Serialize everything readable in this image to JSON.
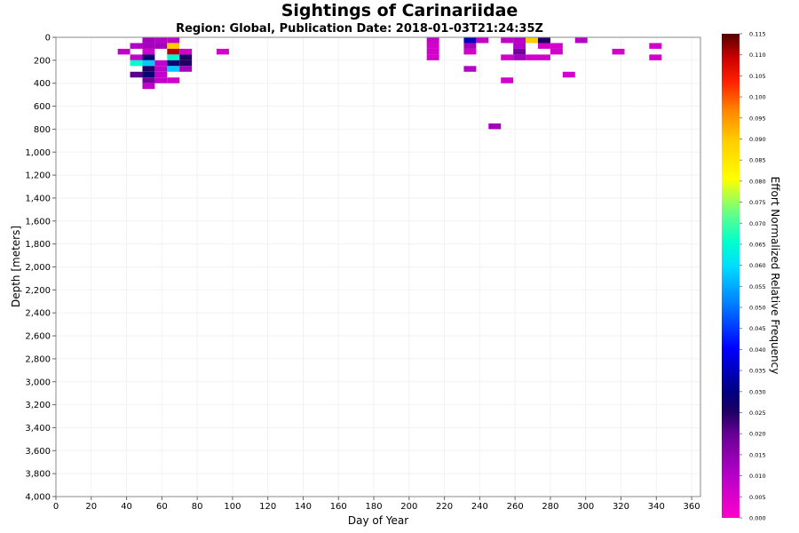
{
  "chart_data": {
    "type": "heatmap",
    "title": "Sightings of Carinariidae",
    "subtitle": "Region: Global, Publication Date: 2018-01-03T21:24:35Z",
    "xlabel": "Day of Year",
    "ylabel": "Depth [meters]",
    "colorbar_label": "Effort Normalized Relative Frequency",
    "xlim": [
      0,
      365
    ],
    "ylim": [
      0,
      4000
    ],
    "y_inverted": true,
    "x_ticks": [
      "0",
      "20",
      "40",
      "60",
      "80",
      "100",
      "120",
      "140",
      "160",
      "180",
      "200",
      "220",
      "240",
      "260",
      "280",
      "300",
      "320",
      "340",
      "360"
    ],
    "y_ticks": [
      "0",
      "200",
      "400",
      "600",
      "800",
      "1,000",
      "1,200",
      "1,400",
      "1,600",
      "1,800",
      "2,000",
      "2,200",
      "2,400",
      "2,600",
      "2,800",
      "3,000",
      "3,200",
      "3,400",
      "3,600",
      "3,800",
      "4,000"
    ],
    "colorbar_range": [
      0,
      0.115
    ],
    "colorbar_ticks": [
      "0.000",
      "0.005",
      "0.010",
      "0.015",
      "0.020",
      "0.025",
      "0.030",
      "0.035",
      "0.040",
      "0.045",
      "0.050",
      "0.055",
      "0.060",
      "0.065",
      "0.070",
      "0.075",
      "0.080",
      "0.085",
      "0.090",
      "0.095",
      "0.100",
      "0.105",
      "0.110",
      "0.115"
    ],
    "bin_size": {
      "day": 7,
      "depth": 50
    },
    "cells": [
      {
        "day": 49,
        "depth": 0,
        "value": 0.012
      },
      {
        "day": 56,
        "depth": 0,
        "value": 0.01
      },
      {
        "day": 63,
        "depth": 0,
        "value": 0.008
      },
      {
        "day": 210,
        "depth": 0,
        "value": 0.008
      },
      {
        "day": 231,
        "depth": 0,
        "value": 0.035
      },
      {
        "day": 238,
        "depth": 0,
        "value": 0.008
      },
      {
        "day": 252,
        "depth": 0,
        "value": 0.008
      },
      {
        "day": 259,
        "depth": 0,
        "value": 0.01
      },
      {
        "day": 266,
        "depth": 0,
        "value": 0.09
      },
      {
        "day": 273,
        "depth": 0,
        "value": 0.025
      },
      {
        "day": 294,
        "depth": 0,
        "value": 0.01
      },
      {
        "day": 42,
        "depth": 50,
        "value": 0.01
      },
      {
        "day": 49,
        "depth": 50,
        "value": 0.012
      },
      {
        "day": 56,
        "depth": 50,
        "value": 0.012
      },
      {
        "day": 63,
        "depth": 50,
        "value": 0.09
      },
      {
        "day": 210,
        "depth": 50,
        "value": 0.006
      },
      {
        "day": 231,
        "depth": 50,
        "value": 0.012
      },
      {
        "day": 259,
        "depth": 50,
        "value": 0.01
      },
      {
        "day": 273,
        "depth": 50,
        "value": 0.006
      },
      {
        "day": 280,
        "depth": 50,
        "value": 0.006
      },
      {
        "day": 336,
        "depth": 50,
        "value": 0.006
      },
      {
        "day": 35,
        "depth": 100,
        "value": 0.008
      },
      {
        "day": 49,
        "depth": 100,
        "value": 0.006
      },
      {
        "day": 63,
        "depth": 100,
        "value": 0.11
      },
      {
        "day": 70,
        "depth": 100,
        "value": 0.006
      },
      {
        "day": 91,
        "depth": 100,
        "value": 0.006
      },
      {
        "day": 210,
        "depth": 100,
        "value": 0.006
      },
      {
        "day": 231,
        "depth": 100,
        "value": 0.006
      },
      {
        "day": 259,
        "depth": 100,
        "value": 0.018
      },
      {
        "day": 280,
        "depth": 100,
        "value": 0.006
      },
      {
        "day": 315,
        "depth": 100,
        "value": 0.006
      },
      {
        "day": 42,
        "depth": 150,
        "value": 0.008
      },
      {
        "day": 49,
        "depth": 150,
        "value": 0.028
      },
      {
        "day": 63,
        "depth": 150,
        "value": 0.065
      },
      {
        "day": 70,
        "depth": 150,
        "value": 0.025
      },
      {
        "day": 210,
        "depth": 150,
        "value": 0.006
      },
      {
        "day": 252,
        "depth": 150,
        "value": 0.006
      },
      {
        "day": 259,
        "depth": 150,
        "value": 0.012
      },
      {
        "day": 266,
        "depth": 150,
        "value": 0.006
      },
      {
        "day": 273,
        "depth": 150,
        "value": 0.006
      },
      {
        "day": 336,
        "depth": 150,
        "value": 0.006
      },
      {
        "day": 42,
        "depth": 200,
        "value": 0.066
      },
      {
        "day": 49,
        "depth": 200,
        "value": 0.058
      },
      {
        "day": 56,
        "depth": 200,
        "value": 0.008
      },
      {
        "day": 63,
        "depth": 200,
        "value": 0.028
      },
      {
        "day": 70,
        "depth": 200,
        "value": 0.025
      },
      {
        "day": 49,
        "depth": 250,
        "value": 0.025
      },
      {
        "day": 56,
        "depth": 250,
        "value": 0.008
      },
      {
        "day": 63,
        "depth": 250,
        "value": 0.058
      },
      {
        "day": 70,
        "depth": 250,
        "value": 0.012
      },
      {
        "day": 231,
        "depth": 250,
        "value": 0.01
      },
      {
        "day": 42,
        "depth": 300,
        "value": 0.02
      },
      {
        "day": 49,
        "depth": 300,
        "value": 0.028
      },
      {
        "day": 56,
        "depth": 300,
        "value": 0.008
      },
      {
        "day": 287,
        "depth": 300,
        "value": 0.006
      },
      {
        "day": 49,
        "depth": 350,
        "value": 0.018
      },
      {
        "day": 56,
        "depth": 350,
        "value": 0.008
      },
      {
        "day": 63,
        "depth": 350,
        "value": 0.006
      },
      {
        "day": 252,
        "depth": 350,
        "value": 0.006
      },
      {
        "day": 49,
        "depth": 400,
        "value": 0.008
      },
      {
        "day": 245,
        "depth": 750,
        "value": 0.012
      }
    ]
  }
}
